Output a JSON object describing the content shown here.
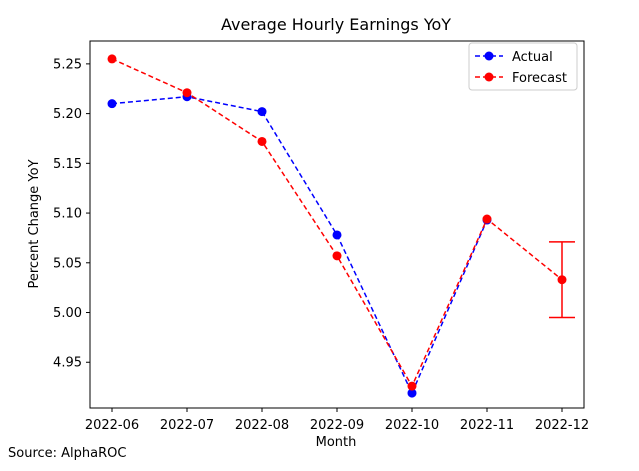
{
  "source_note": "Source: AlphaROC",
  "chart_data": {
    "type": "line",
    "title": "Average Hourly Earnings YoY",
    "xlabel": "Month",
    "ylabel": "Percent Change YoY",
    "categories": [
      "2022-06",
      "2022-07",
      "2022-08",
      "2022-09",
      "2022-10",
      "2022-11",
      "2022-12"
    ],
    "series": [
      {
        "name": "Actual",
        "color": "#0000ff",
        "line_style": "dashed",
        "marker": "circle",
        "values": [
          5.21,
          5.217,
          5.202,
          5.078,
          4.919,
          5.093,
          null
        ]
      },
      {
        "name": "Forecast",
        "color": "#ff0000",
        "line_style": "dashed",
        "marker": "circle",
        "values": [
          5.255,
          5.221,
          5.172,
          5.057,
          4.926,
          5.094,
          5.033
        ]
      }
    ],
    "error_bar": {
      "series": "Forecast",
      "category": "2022-12",
      "low": 4.995,
      "high": 5.071,
      "color": "#ff0000"
    },
    "ylim": [
      4.904,
      5.273
    ],
    "yticks": [
      "4.95",
      "5.00",
      "5.05",
      "5.10",
      "5.15",
      "5.20",
      "5.25"
    ],
    "grid": false,
    "legend_position": "top-right"
  }
}
